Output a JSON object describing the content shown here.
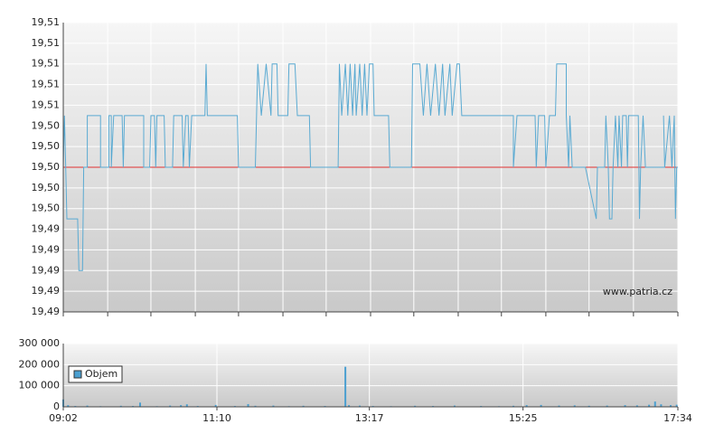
{
  "chart_data": [
    {
      "type": "line",
      "annotation": "www.patria.cz",
      "color": "#5aaad2",
      "reference_line": 19.5,
      "reference_color": "#e03030",
      "xlim": [
        542,
        1054
      ],
      "xgrid": [
        542,
        579,
        615,
        652,
        688,
        725,
        761,
        798,
        834,
        871,
        907,
        944,
        980,
        1017,
        1054
      ],
      "ylim": [
        19.486,
        19.514
      ],
      "yticks": [
        {
          "value": 19.486,
          "label": "19,49"
        },
        {
          "value": 19.488,
          "label": "19,49"
        },
        {
          "value": 19.49,
          "label": "19,49"
        },
        {
          "value": 19.492,
          "label": "19,49"
        },
        {
          "value": 19.494,
          "label": "19,49"
        },
        {
          "value": 19.496,
          "label": "19,50"
        },
        {
          "value": 19.498,
          "label": "19,50"
        },
        {
          "value": 19.5,
          "label": "19,50"
        },
        {
          "value": 19.502,
          "label": "19,50"
        },
        {
          "value": 19.504,
          "label": "19,50"
        },
        {
          "value": 19.506,
          "label": "19,51"
        },
        {
          "value": 19.508,
          "label": "19,51"
        },
        {
          "value": 19.51,
          "label": "19,51"
        },
        {
          "value": 19.512,
          "label": "19,51"
        },
        {
          "value": 19.514,
          "label": "19,51"
        }
      ],
      "x": [
        542,
        543,
        544,
        545,
        554,
        555,
        558,
        559,
        562,
        562,
        573,
        573,
        580,
        580,
        582,
        582,
        584,
        591,
        592,
        593,
        609,
        609,
        614,
        615,
        618,
        619,
        620,
        626,
        627,
        633,
        634,
        641,
        642,
        644,
        646,
        647,
        649,
        660,
        661,
        662,
        687,
        688,
        702,
        704,
        707,
        711,
        715,
        716,
        720,
        721,
        729,
        730,
        735,
        737,
        747,
        748,
        771,
        772,
        774,
        777,
        779,
        781,
        783,
        785,
        786,
        789,
        791,
        793,
        795,
        797,
        800,
        801,
        809,
        813,
        814,
        832,
        833,
        839,
        842,
        845,
        848,
        852,
        855,
        858,
        860,
        864,
        866,
        870,
        872,
        874,
        917,
        917,
        920,
        935,
        936,
        938,
        943,
        944,
        947,
        952,
        953,
        961,
        961,
        963,
        964,
        966,
        977,
        986,
        987,
        993,
        994,
        996,
        997,
        999,
        1000,
        1002,
        1004,
        1005,
        1007,
        1008,
        1011,
        1012,
        1013,
        1016,
        1021,
        1022,
        1023,
        1025,
        1027,
        1043,
        1042,
        1043,
        1047,
        1049,
        1051,
        1052,
        1053,
        1054
      ],
      "values": [
        19.5,
        19.505,
        19.5,
        19.495,
        19.495,
        19.49,
        19.49,
        19.5,
        19.5,
        19.505,
        19.505,
        19.5,
        19.5,
        19.505,
        19.505,
        19.5,
        19.505,
        19.505,
        19.5,
        19.505,
        19.505,
        19.5,
        19.5,
        19.505,
        19.505,
        19.5,
        19.505,
        19.505,
        19.5,
        19.5,
        19.505,
        19.505,
        19.5,
        19.505,
        19.505,
        19.5,
        19.505,
        19.505,
        19.51,
        19.505,
        19.505,
        19.5,
        19.5,
        19.51,
        19.505,
        19.51,
        19.505,
        19.51,
        19.51,
        19.505,
        19.505,
        19.51,
        19.51,
        19.505,
        19.505,
        19.5,
        19.5,
        19.51,
        19.505,
        19.51,
        19.505,
        19.51,
        19.505,
        19.51,
        19.505,
        19.51,
        19.505,
        19.51,
        19.505,
        19.51,
        19.51,
        19.505,
        19.505,
        19.505,
        19.5,
        19.5,
        19.51,
        19.51,
        19.505,
        19.51,
        19.505,
        19.51,
        19.505,
        19.51,
        19.505,
        19.51,
        19.505,
        19.51,
        19.51,
        19.505,
        19.505,
        19.5,
        19.505,
        19.505,
        19.5,
        19.505,
        19.505,
        19.5,
        19.505,
        19.505,
        19.51,
        19.51,
        19.505,
        19.5,
        19.505,
        19.5,
        19.5,
        19.495,
        19.5,
        19.5,
        19.505,
        19.5,
        19.495,
        19.495,
        19.5,
        19.505,
        19.5,
        19.505,
        19.5,
        19.505,
        19.505,
        19.5,
        19.505,
        19.505,
        19.505,
        19.495,
        19.5,
        19.505,
        19.5,
        19.5,
        19.505,
        19.5,
        19.505,
        19.5,
        19.505,
        19.495,
        19.5,
        19.5
      ]
    },
    {
      "type": "bar",
      "xlim": [
        542,
        1054
      ],
      "xticks": [
        {
          "value": 542,
          "label": "09:02"
        },
        {
          "value": 670,
          "label": "11:10"
        },
        {
          "value": 797,
          "label": "13:17"
        },
        {
          "value": 925,
          "label": "15:25"
        },
        {
          "value": 1054,
          "label": "17:34"
        }
      ],
      "ylim": [
        0,
        300000
      ],
      "yticks": [
        0,
        {
          "value": 100000,
          "label": "100 000"
        },
        {
          "value": 200000,
          "label": "200 000"
        },
        {
          "value": 300000,
          "label": "300 000"
        }
      ],
      "x": [
        542,
        546,
        552,
        562,
        573,
        590,
        600,
        606,
        620,
        631,
        640,
        645,
        654,
        669,
        685,
        696,
        702,
        717,
        730,
        742,
        760,
        777,
        780,
        789,
        800,
        815,
        835,
        850,
        868,
        890,
        905,
        917,
        928,
        940,
        955,
        968,
        980,
        995,
        1010,
        1020,
        1030,
        1035,
        1040,
        1048,
        1053
      ],
      "series": [
        {
          "name": "Objem",
          "color": "#4a9fd0",
          "values": [
            35000,
            8000,
            4000,
            6000,
            3000,
            5000,
            4000,
            20000,
            3000,
            6000,
            8000,
            12000,
            4000,
            9000,
            4000,
            13000,
            5000,
            6000,
            3000,
            5000,
            4000,
            190000,
            8000,
            6000,
            4000,
            3000,
            5000,
            4000,
            6000,
            4000,
            3000,
            5000,
            8000,
            9000,
            6000,
            7000,
            5000,
            6000,
            8000,
            7000,
            10000,
            25000,
            12000,
            8000,
            10000
          ]
        }
      ]
    }
  ]
}
